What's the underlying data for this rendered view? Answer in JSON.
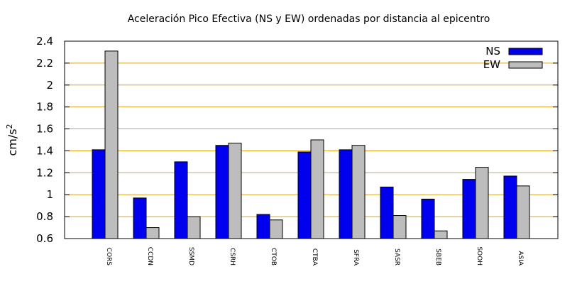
{
  "chart_data": {
    "type": "bar",
    "title": "Aceleración Pico Efectiva (NS y EW) ordenadas por distancia al epicentro",
    "ylabel": "cm/s",
    "ylabel_superscript": "2",
    "xlabel": "",
    "ylim": [
      0.6,
      2.4
    ],
    "yticks": [
      "0.6",
      "0.8",
      "1",
      "1.2",
      "1.4",
      "1.6",
      "1.8",
      "2",
      "2.2",
      "2.4"
    ],
    "grid": "horizontal",
    "legend_position": "top-right",
    "categories": [
      "CORS",
      "CCDN",
      "SSMD",
      "CSRH",
      "CTOB",
      "CTBA",
      "SFRA",
      "SASR",
      "SBEB",
      "SOOH",
      "ASIA"
    ],
    "series": [
      {
        "name": "NS",
        "color": "#0000ee",
        "values": [
          1.41,
          0.97,
          1.3,
          1.45,
          0.82,
          1.39,
          1.41,
          1.07,
          0.96,
          1.14,
          1.17
        ]
      },
      {
        "name": "EW",
        "color": "#bdbdbd",
        "values": [
          2.31,
          0.7,
          0.8,
          1.47,
          0.77,
          1.5,
          1.45,
          0.81,
          0.67,
          1.25,
          1.08
        ]
      }
    ],
    "grid_color": "#daa520"
  }
}
